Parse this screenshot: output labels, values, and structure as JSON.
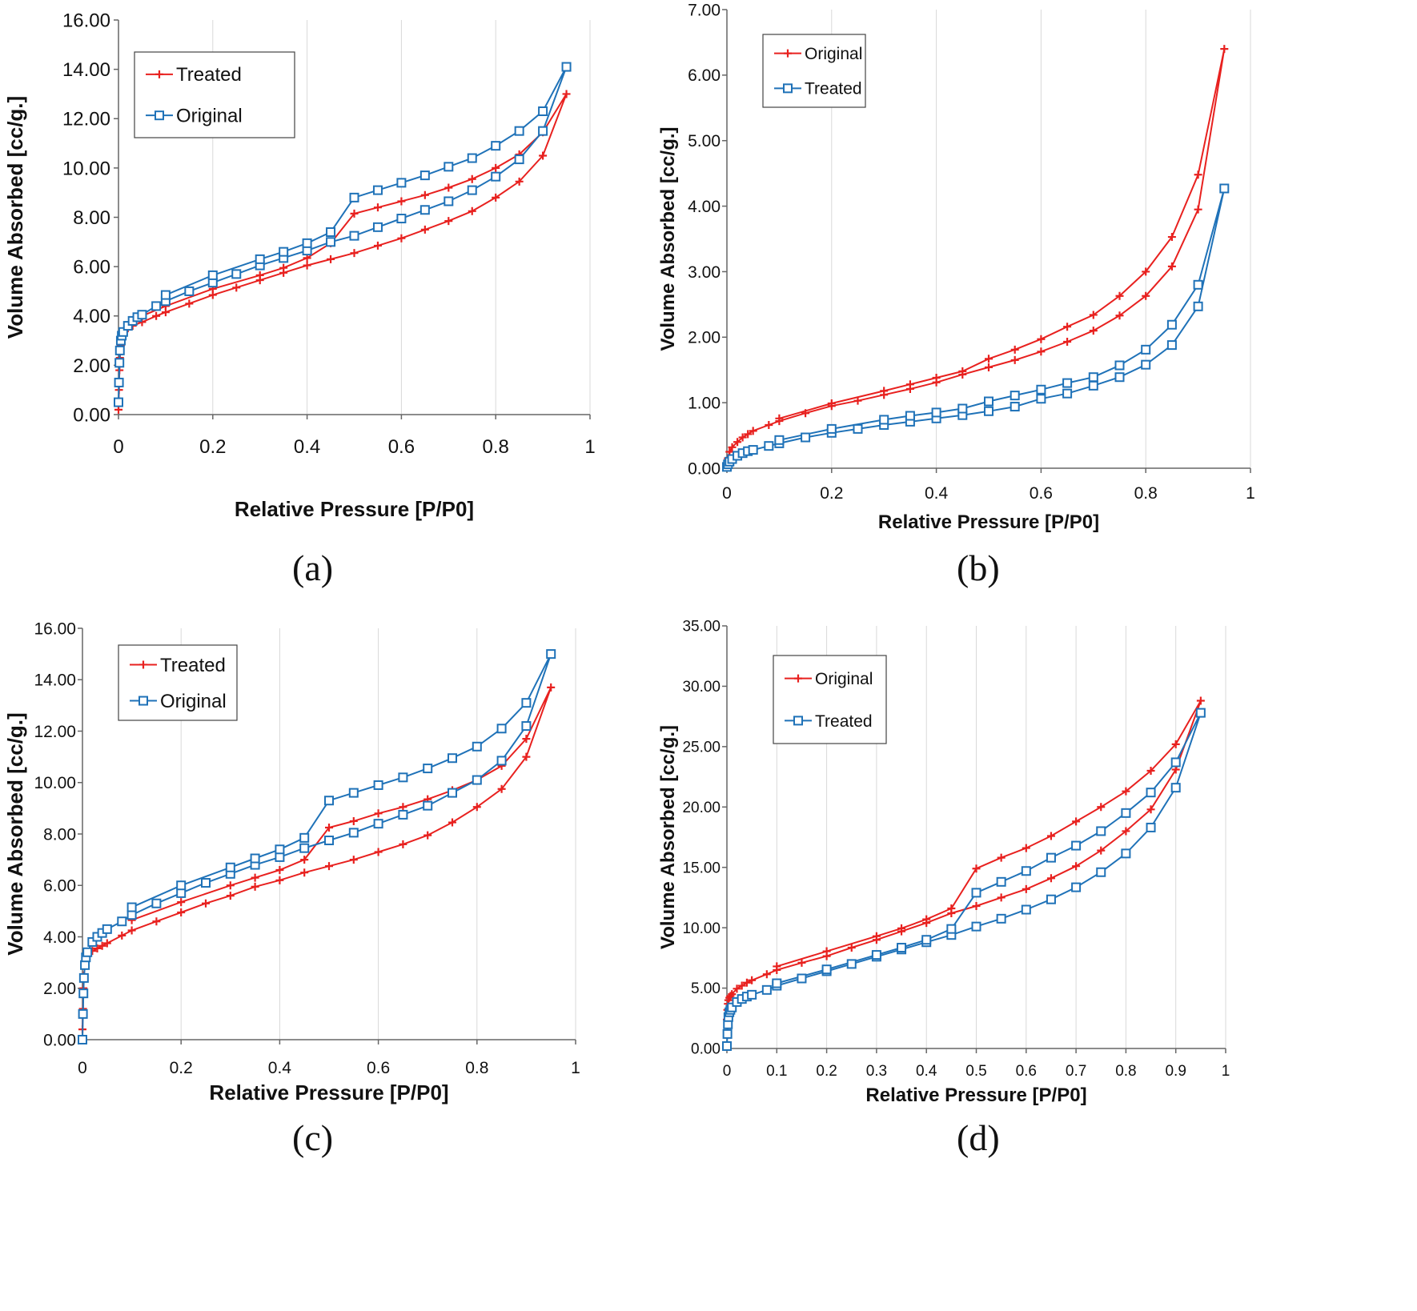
{
  "chart_data": [
    {
      "type": "line",
      "panel_label": "(a)",
      "xlabel": "Relative Pressure [P/P0]",
      "ylabel": "Volume Absorbed [cc/g.]",
      "xlim": [
        0,
        1
      ],
      "ylim": [
        0,
        16
      ],
      "xticks": [
        "0",
        "0.2",
        "0.4",
        "0.6",
        "0.8",
        "1"
      ],
      "yticks": [
        "0.00",
        "2.00",
        "4.00",
        "6.00",
        "8.00",
        "10.00",
        "12.00",
        "14.00",
        "16.00"
      ],
      "grid": "vertical",
      "legend_position": "top-left",
      "series": [
        {
          "name": "Treated",
          "color": "#e8211f",
          "marker": "plus",
          "x": [
            0,
            0.001,
            0.002,
            0.003,
            0.005,
            0.007,
            0.01,
            0.02,
            0.03,
            0.05,
            0.08,
            0.1,
            0.15,
            0.2,
            0.25,
            0.3,
            0.35,
            0.4,
            0.45,
            0.5,
            0.55,
            0.6,
            0.65,
            0.7,
            0.75,
            0.8,
            0.85,
            0.9,
            0.95,
            0.9,
            0.85,
            0.8,
            0.75,
            0.7,
            0.65,
            0.6,
            0.55,
            0.5,
            0.45,
            0.4,
            0.35,
            0.3,
            0.2,
            0.1,
            0.05
          ],
          "y": [
            0.2,
            1.0,
            1.8,
            2.3,
            2.8,
            3.1,
            3.3,
            3.5,
            3.6,
            3.75,
            4.0,
            4.15,
            4.5,
            4.85,
            5.15,
            5.45,
            5.75,
            6.05,
            6.3,
            6.55,
            6.85,
            7.15,
            7.5,
            7.85,
            8.25,
            8.8,
            9.45,
            10.5,
            13.0,
            11.45,
            10.55,
            10.0,
            9.55,
            9.2,
            8.9,
            8.65,
            8.4,
            8.15,
            6.95,
            6.35,
            5.95,
            5.65,
            5.1,
            4.4,
            4.0
          ]
        },
        {
          "name": "Original",
          "color": "#1f72b8",
          "marker": "square",
          "x": [
            0,
            0.001,
            0.002,
            0.003,
            0.005,
            0.007,
            0.01,
            0.02,
            0.03,
            0.04,
            0.05,
            0.08,
            0.1,
            0.15,
            0.2,
            0.25,
            0.3,
            0.35,
            0.4,
            0.45,
            0.5,
            0.55,
            0.6,
            0.65,
            0.7,
            0.75,
            0.8,
            0.85,
            0.9,
            0.95,
            0.9,
            0.85,
            0.8,
            0.75,
            0.7,
            0.65,
            0.6,
            0.55,
            0.5,
            0.45,
            0.4,
            0.35,
            0.3,
            0.2,
            0.1
          ],
          "y": [
            0.5,
            1.3,
            2.1,
            2.6,
            3.0,
            3.2,
            3.35,
            3.6,
            3.8,
            3.95,
            4.05,
            4.4,
            4.6,
            5.0,
            5.35,
            5.7,
            6.05,
            6.35,
            6.65,
            7.0,
            7.25,
            7.6,
            7.95,
            8.3,
            8.65,
            9.1,
            9.65,
            10.35,
            11.5,
            14.1,
            12.3,
            11.5,
            10.9,
            10.4,
            10.05,
            9.7,
            9.4,
            9.1,
            8.8,
            7.4,
            6.95,
            6.6,
            6.3,
            5.65,
            4.85
          ]
        }
      ]
    },
    {
      "type": "line",
      "panel_label": "(b)",
      "xlabel": "Relative Pressure [P/P0]",
      "ylabel": "Volume Absorbed [cc/g.]",
      "xlim": [
        0,
        1
      ],
      "ylim": [
        0,
        7
      ],
      "xticks": [
        "0",
        "0.2",
        "0.4",
        "0.6",
        "0.8",
        "1"
      ],
      "yticks": [
        "0.00",
        "1.00",
        "2.00",
        "3.00",
        "4.00",
        "5.00",
        "6.00",
        "7.00"
      ],
      "grid": "vertical",
      "legend_position": "top-left",
      "series": [
        {
          "name": "Original",
          "color": "#e8211f",
          "marker": "plus",
          "x": [
            0,
            0.002,
            0.005,
            0.01,
            0.02,
            0.03,
            0.04,
            0.05,
            0.08,
            0.1,
            0.15,
            0.2,
            0.25,
            0.3,
            0.35,
            0.4,
            0.45,
            0.5,
            0.55,
            0.6,
            0.65,
            0.7,
            0.75,
            0.8,
            0.85,
            0.9,
            0.95,
            0.9,
            0.85,
            0.8,
            0.75,
            0.7,
            0.65,
            0.6,
            0.55,
            0.5,
            0.45,
            0.4,
            0.35,
            0.3,
            0.2,
            0.1
          ],
          "y": [
            0.05,
            0.15,
            0.25,
            0.32,
            0.4,
            0.47,
            0.52,
            0.57,
            0.66,
            0.72,
            0.84,
            0.95,
            1.03,
            1.12,
            1.21,
            1.31,
            1.43,
            1.54,
            1.65,
            1.78,
            1.93,
            2.1,
            2.33,
            2.63,
            3.08,
            3.95,
            6.4,
            4.48,
            3.53,
            3.0,
            2.63,
            2.34,
            2.16,
            1.97,
            1.81,
            1.67,
            1.48,
            1.38,
            1.28,
            1.18,
            0.99,
            0.76
          ]
        },
        {
          "name": "Treated",
          "color": "#1f72b8",
          "marker": "square",
          "x": [
            0,
            0.002,
            0.005,
            0.01,
            0.02,
            0.03,
            0.04,
            0.05,
            0.08,
            0.1,
            0.15,
            0.2,
            0.25,
            0.3,
            0.35,
            0.4,
            0.45,
            0.5,
            0.55,
            0.6,
            0.65,
            0.7,
            0.75,
            0.8,
            0.85,
            0.9,
            0.95,
            0.9,
            0.85,
            0.8,
            0.75,
            0.7,
            0.65,
            0.6,
            0.55,
            0.5,
            0.45,
            0.4,
            0.35,
            0.3,
            0.2,
            0.1
          ],
          "y": [
            0.02,
            0.06,
            0.1,
            0.14,
            0.19,
            0.23,
            0.26,
            0.28,
            0.34,
            0.38,
            0.47,
            0.54,
            0.6,
            0.66,
            0.71,
            0.76,
            0.81,
            0.87,
            0.94,
            1.06,
            1.14,
            1.26,
            1.39,
            1.58,
            1.88,
            2.47,
            4.27,
            2.8,
            2.19,
            1.81,
            1.57,
            1.39,
            1.3,
            1.2,
            1.11,
            1.02,
            0.91,
            0.85,
            0.8,
            0.74,
            0.6,
            0.43
          ]
        }
      ]
    },
    {
      "type": "line",
      "panel_label": "(c)",
      "xlabel": "Relative Pressure [P/P0]",
      "ylabel": "Volume Absorbed [cc/g.]",
      "xlim": [
        0,
        1
      ],
      "ylim": [
        0,
        16
      ],
      "xticks": [
        "0",
        "0.2",
        "0.4",
        "0.6",
        "0.8",
        "1"
      ],
      "yticks": [
        "0.00",
        "2.00",
        "4.00",
        "6.00",
        "8.00",
        "10.00",
        "12.00",
        "14.00",
        "16.00"
      ],
      "grid": "vertical",
      "legend_position": "top-left",
      "series": [
        {
          "name": "Treated",
          "color": "#e8211f",
          "marker": "plus",
          "x": [
            0,
            0.001,
            0.002,
            0.003,
            0.005,
            0.007,
            0.01,
            0.02,
            0.03,
            0.04,
            0.05,
            0.08,
            0.1,
            0.15,
            0.2,
            0.25,
            0.3,
            0.35,
            0.4,
            0.45,
            0.5,
            0.55,
            0.6,
            0.65,
            0.7,
            0.75,
            0.8,
            0.85,
            0.9,
            0.95,
            0.9,
            0.85,
            0.8,
            0.75,
            0.7,
            0.65,
            0.6,
            0.55,
            0.5,
            0.45,
            0.4,
            0.35,
            0.3,
            0.2,
            0.1
          ],
          "y": [
            0.4,
            1.2,
            2.0,
            2.5,
            2.9,
            3.1,
            3.3,
            3.45,
            3.55,
            3.65,
            3.75,
            4.05,
            4.25,
            4.6,
            4.95,
            5.3,
            5.6,
            5.95,
            6.2,
            6.5,
            6.75,
            7.0,
            7.3,
            7.6,
            7.95,
            8.45,
            9.05,
            9.75,
            11.0,
            13.7,
            11.7,
            10.65,
            10.1,
            9.7,
            9.35,
            9.05,
            8.8,
            8.5,
            8.25,
            7.0,
            6.6,
            6.3,
            6.0,
            5.35,
            4.65
          ]
        },
        {
          "name": "Original",
          "color": "#1f72b8",
          "marker": "square",
          "x": [
            0,
            0.001,
            0.002,
            0.003,
            0.005,
            0.007,
            0.01,
            0.02,
            0.03,
            0.04,
            0.05,
            0.08,
            0.1,
            0.15,
            0.2,
            0.25,
            0.3,
            0.35,
            0.4,
            0.45,
            0.5,
            0.55,
            0.6,
            0.65,
            0.7,
            0.75,
            0.8,
            0.85,
            0.9,
            0.95,
            0.9,
            0.85,
            0.8,
            0.75,
            0.7,
            0.65,
            0.6,
            0.55,
            0.5,
            0.45,
            0.4,
            0.35,
            0.3,
            0.2,
            0.1
          ],
          "y": [
            0.0,
            1.0,
            1.8,
            2.4,
            2.9,
            3.2,
            3.4,
            3.8,
            4.0,
            4.15,
            4.3,
            4.6,
            4.85,
            5.3,
            5.7,
            6.1,
            6.45,
            6.8,
            7.1,
            7.45,
            7.75,
            8.05,
            8.4,
            8.75,
            9.1,
            9.6,
            10.1,
            10.85,
            12.2,
            15.0,
            13.1,
            12.1,
            11.4,
            10.95,
            10.55,
            10.2,
            9.9,
            9.6,
            9.3,
            7.85,
            7.4,
            7.05,
            6.7,
            6.0,
            5.15
          ]
        }
      ]
    },
    {
      "type": "line",
      "panel_label": "(d)",
      "xlabel": "Relative Pressure [P/P0]",
      "ylabel": "Volume Absorbed [cc/g.]",
      "xlim": [
        0,
        1
      ],
      "ylim": [
        0,
        35
      ],
      "xticks": [
        "0",
        "0.1",
        "0.2",
        "0.3",
        "0.4",
        "0.5",
        "0.6",
        "0.7",
        "0.8",
        "0.9",
        "1"
      ],
      "yticks": [
        "0.00",
        "5.00",
        "10.00",
        "15.00",
        "20.00",
        "25.00",
        "30.00",
        "35.00"
      ],
      "grid": "vertical",
      "legend_position": "top-left",
      "series": [
        {
          "name": "Original",
          "color": "#e8211f",
          "marker": "plus",
          "x": [
            0,
            0.001,
            0.002,
            0.003,
            0.005,
            0.007,
            0.01,
            0.02,
            0.03,
            0.04,
            0.05,
            0.08,
            0.1,
            0.15,
            0.2,
            0.25,
            0.3,
            0.35,
            0.4,
            0.45,
            0.5,
            0.55,
            0.6,
            0.65,
            0.7,
            0.75,
            0.8,
            0.85,
            0.9,
            0.95,
            0.9,
            0.85,
            0.8,
            0.75,
            0.7,
            0.65,
            0.6,
            0.55,
            0.5,
            0.45,
            0.4,
            0.35,
            0.3,
            0.2,
            0.1
          ],
          "y": [
            2.4,
            3.2,
            3.7,
            4.0,
            4.2,
            4.35,
            4.5,
            4.95,
            5.2,
            5.45,
            5.65,
            6.15,
            6.5,
            7.1,
            7.65,
            8.35,
            9.0,
            9.7,
            10.4,
            11.2,
            11.8,
            12.5,
            13.2,
            14.1,
            15.1,
            16.4,
            18.0,
            19.8,
            23.1,
            28.8,
            25.2,
            23.0,
            21.3,
            20.0,
            18.8,
            17.6,
            16.6,
            15.8,
            14.9,
            11.6,
            10.7,
            9.95,
            9.3,
            8.05,
            6.8
          ]
        },
        {
          "name": "Treated",
          "color": "#1f72b8",
          "marker": "square",
          "x": [
            0,
            0.001,
            0.002,
            0.003,
            0.005,
            0.007,
            0.01,
            0.02,
            0.03,
            0.04,
            0.05,
            0.08,
            0.1,
            0.15,
            0.2,
            0.25,
            0.3,
            0.35,
            0.4,
            0.45,
            0.5,
            0.55,
            0.6,
            0.65,
            0.7,
            0.75,
            0.8,
            0.85,
            0.9,
            0.95,
            0.9,
            0.85,
            0.8,
            0.75,
            0.7,
            0.65,
            0.6,
            0.55,
            0.5,
            0.45,
            0.4,
            0.35,
            0.3,
            0.2,
            0.1
          ],
          "y": [
            0.2,
            1.2,
            2.0,
            2.6,
            3.0,
            3.2,
            3.4,
            3.85,
            4.1,
            4.3,
            4.45,
            4.85,
            5.2,
            5.8,
            6.4,
            7.0,
            7.6,
            8.2,
            8.8,
            9.4,
            10.1,
            10.75,
            11.5,
            12.35,
            13.35,
            14.6,
            16.15,
            18.3,
            21.6,
            27.8,
            23.7,
            21.2,
            19.5,
            18.0,
            16.8,
            15.8,
            14.7,
            13.8,
            12.9,
            9.9,
            9.0,
            8.35,
            7.75,
            6.55,
            5.4
          ]
        }
      ]
    }
  ]
}
